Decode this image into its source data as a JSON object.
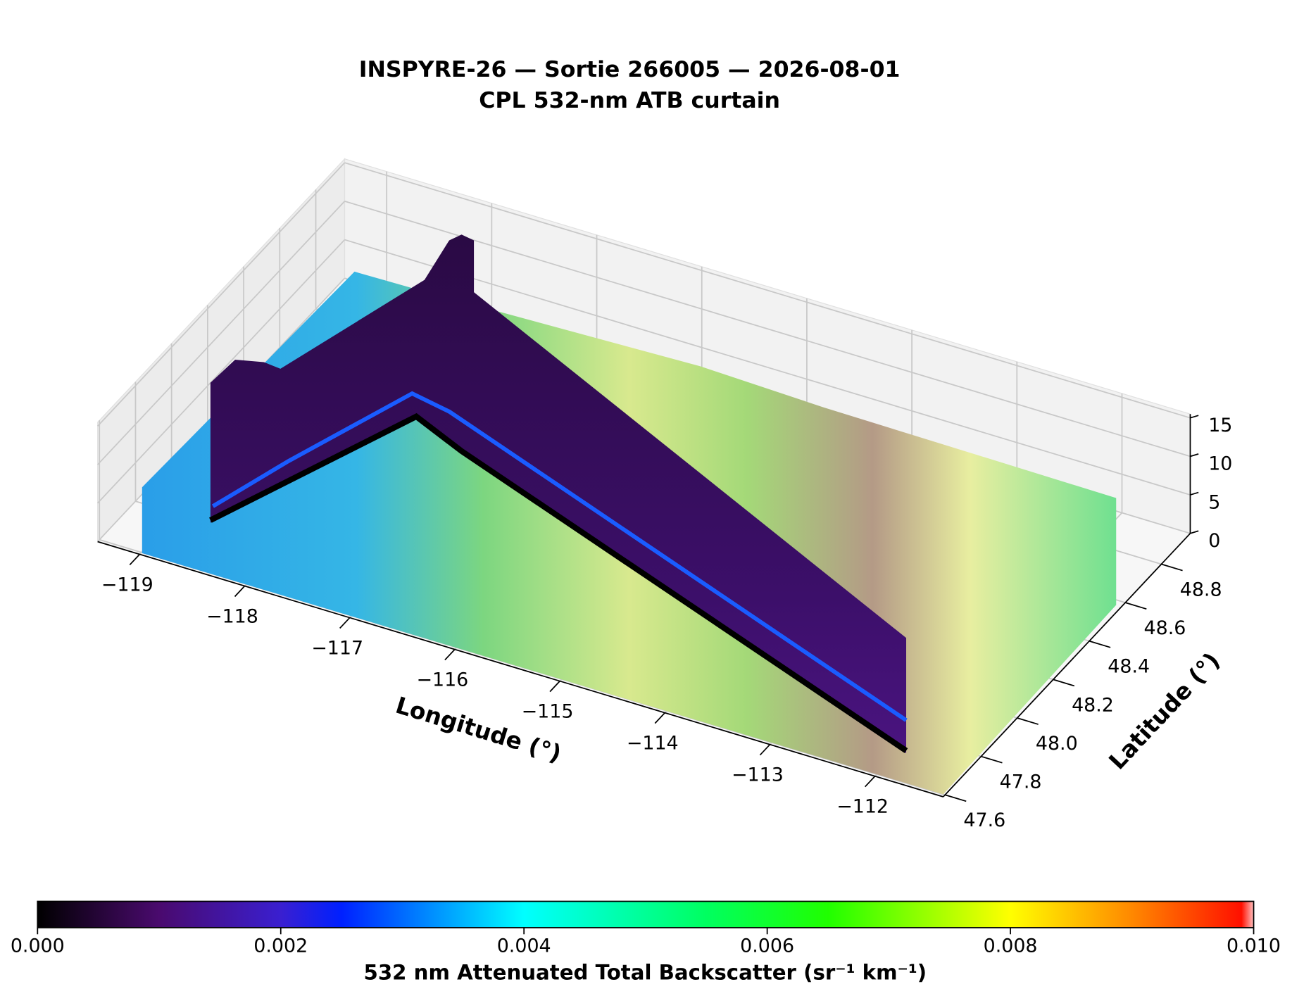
{
  "chart_data": {
    "type": "3d-curtain",
    "title": "INSPYRE-26 — Sortie 266005 — 2026-08-01",
    "subtitle": "CPL 532-nm ATB curtain",
    "xlabel": "Longitude (°)",
    "ylabel": "Latitude (°)",
    "xlim": [
      -119.4,
      -111.35
    ],
    "xticks": [
      {
        "value": -119,
        "label": "−119"
      },
      {
        "value": -118,
        "label": "−118"
      },
      {
        "value": -117,
        "label": "−117"
      },
      {
        "value": -116,
        "label": "−116"
      },
      {
        "value": -115,
        "label": "−115"
      },
      {
        "value": -114,
        "label": "−114"
      },
      {
        "value": -113,
        "label": "−113"
      },
      {
        "value": -112,
        "label": "−112"
      }
    ],
    "ylim": [
      47.59,
      48.96
    ],
    "yticks": [
      47.6,
      47.8,
      {
        "value": 48,
        "label": "48.0"
      },
      48.2,
      48.4,
      48.6,
      48.8
    ],
    "zlim": [
      0,
      15.5
    ],
    "zticks": [
      0,
      5,
      10,
      15
    ],
    "grid": true,
    "colorbar": {
      "label": "532 nm Attenuated Total Backscatter (sr⁻¹ km⁻¹)",
      "lim": [
        0,
        0.01
      ],
      "ticks": [
        {
          "value": 0,
          "label": "0.000"
        },
        {
          "value": 0.002,
          "label": "0.002"
        },
        {
          "value": 0.004,
          "label": "0.004"
        },
        {
          "value": 0.006,
          "label": "0.006"
        },
        {
          "value": 0.008,
          "label": "0.008"
        },
        {
          "value": 0.01,
          "label": "0.010"
        }
      ]
    }
  }
}
